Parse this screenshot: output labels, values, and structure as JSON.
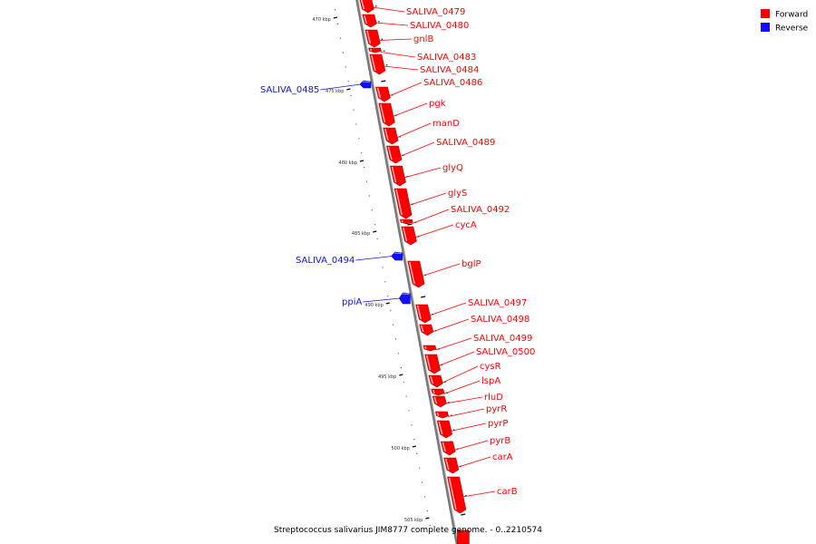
{
  "caption": "Streptococcus salivarius JIM8777 complete genome. - 0..2210574",
  "colors": {
    "forward": "#ff0000",
    "reverse": "#1010ff",
    "axis": "#888888"
  },
  "legend": [
    {
      "label": "Forward",
      "strand": "forward"
    },
    {
      "label": "Reverse",
      "strand": "reverse"
    }
  ],
  "ticks": [
    "470 kbp",
    "475 kbp",
    "480 kbp",
    "485 kbp",
    "490 kbp",
    "495 kbp",
    "500 kbp",
    "505 kbp"
  ],
  "genes": [
    {
      "label": "SALIVA_0479",
      "strand": "forward"
    },
    {
      "label": "SALIVA_0480",
      "strand": "forward"
    },
    {
      "label": "gnlB",
      "strand": "forward"
    },
    {
      "label": "SALIVA_0483",
      "strand": "forward"
    },
    {
      "label": "SALIVA_0484",
      "strand": "forward"
    },
    {
      "label": "SALIVA_0485",
      "strand": "reverse"
    },
    {
      "label": "SALIVA_0486",
      "strand": "forward"
    },
    {
      "label": "pgk",
      "strand": "forward"
    },
    {
      "label": "manD",
      "strand": "forward"
    },
    {
      "label": "SALIVA_0489",
      "strand": "forward"
    },
    {
      "label": "glyQ",
      "strand": "forward"
    },
    {
      "label": "glyS",
      "strand": "forward"
    },
    {
      "label": "SALIVA_0492",
      "strand": "forward"
    },
    {
      "label": "cycA",
      "strand": "forward"
    },
    {
      "label": "SALIVA_0494",
      "strand": "reverse"
    },
    {
      "label": "bglP",
      "strand": "forward"
    },
    {
      "label": "ppiA",
      "strand": "reverse"
    },
    {
      "label": "SALIVA_0497",
      "strand": "forward"
    },
    {
      "label": "SALIVA_0498",
      "strand": "forward"
    },
    {
      "label": "SALIVA_0499",
      "strand": "forward"
    },
    {
      "label": "SALIVA_0500",
      "strand": "forward"
    },
    {
      "label": "cysR",
      "strand": "forward"
    },
    {
      "label": "lspA",
      "strand": "forward"
    },
    {
      "label": "rluD",
      "strand": "forward"
    },
    {
      "label": "pyrR",
      "strand": "forward"
    },
    {
      "label": "pyrP",
      "strand": "forward"
    },
    {
      "label": "pyrB",
      "strand": "forward"
    },
    {
      "label": "carA",
      "strand": "forward"
    },
    {
      "label": "carB",
      "strand": "forward"
    }
  ]
}
